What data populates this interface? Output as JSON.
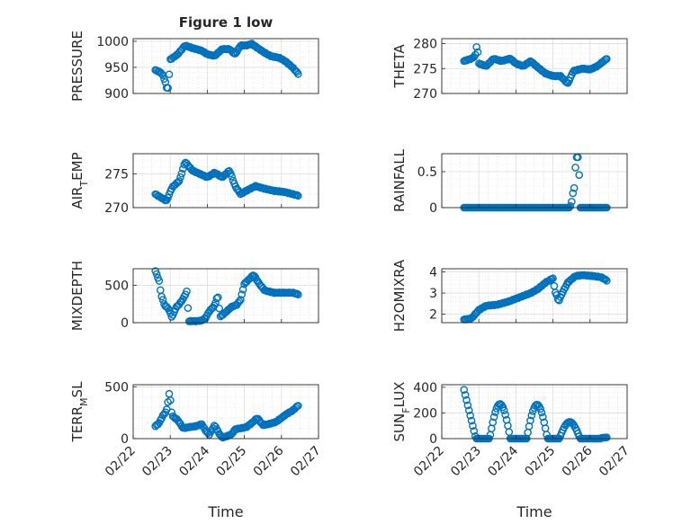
{
  "figure": {
    "title": "Figure 1 low",
    "marker_color": "#0072BD",
    "grid": true,
    "x_label": "Time"
  },
  "chart_data": [
    {
      "type": "scatter",
      "title": "Figure 1 low",
      "ylabel": "PRESSURE",
      "ylim": [
        900,
        1005
      ],
      "yticks": [
        "900",
        "950",
        "1000"
      ],
      "xlim": [
        "02/22",
        "02/27"
      ],
      "x_tick_labels": [
        "02/22",
        "02/23",
        "02/24",
        "02/25",
        "02/26",
        "02/27"
      ],
      "shape": "pressure"
    },
    {
      "type": "scatter",
      "ylabel": "THETA",
      "ylim": [
        270,
        281
      ],
      "yticks": [
        "270",
        "275",
        "280"
      ],
      "xlim": [
        "02/22",
        "02/27"
      ],
      "x_tick_labels": [
        "02/22",
        "02/23",
        "02/24",
        "02/25",
        "02/26",
        "02/27"
      ],
      "shape": "theta"
    },
    {
      "type": "scatter",
      "ylabel": "AIR_TEMP",
      "ylabel_main": "AIR",
      "ylabel_sub": "T",
      "ylabel_rest": "EMP",
      "ylim": [
        270,
        278
      ],
      "yticks": [
        "270",
        "275"
      ],
      "xlim": [
        "02/22",
        "02/27"
      ],
      "x_tick_labels": [
        "02/22",
        "02/23",
        "02/24",
        "02/25",
        "02/26",
        "02/27"
      ],
      "shape": "airtemp"
    },
    {
      "type": "scatter",
      "ylabel": "RAINFALL",
      "ylim": [
        0,
        0.75
      ],
      "yticks": [
        "0",
        "0.5"
      ],
      "xlim": [
        "02/22",
        "02/27"
      ],
      "x_tick_labels": [
        "02/22",
        "02/23",
        "02/24",
        "02/25",
        "02/26",
        "02/27"
      ],
      "shape": "rain"
    },
    {
      "type": "scatter",
      "ylabel": "MIXDEPTH",
      "ylim": [
        0,
        720
      ],
      "yticks": [
        "0",
        "500"
      ],
      "xlim": [
        "02/22",
        "02/27"
      ],
      "x_tick_labels": [
        "02/22",
        "02/23",
        "02/24",
        "02/25",
        "02/26",
        "02/27"
      ],
      "shape": "mix"
    },
    {
      "type": "scatter",
      "ylabel": "H2OMIXRA",
      "ylim": [
        1.6,
        4.15
      ],
      "yticks": [
        "2",
        "3",
        "4"
      ],
      "xlim": [
        "02/22",
        "02/27"
      ],
      "x_tick_labels": [
        "02/22",
        "02/23",
        "02/24",
        "02/25",
        "02/26",
        "02/27"
      ],
      "shape": "h2o"
    },
    {
      "type": "scatter",
      "ylabel": "TERR_MSL",
      "ylabel_main": "TERR",
      "ylabel_sub": "M",
      "ylabel_rest": "SL",
      "ylim": [
        0,
        520
      ],
      "yticks": [
        "0",
        "500"
      ],
      "xlim": [
        "02/22",
        "02/27"
      ],
      "x_tick_labels": [
        "02/22",
        "02/23",
        "02/24",
        "02/25",
        "02/26",
        "02/27"
      ],
      "xlabel": "Time",
      "shape": "terr"
    },
    {
      "type": "scatter",
      "ylabel": "SUN_FLUX",
      "ylabel_main": "SUN",
      "ylabel_sub": "F",
      "ylabel_rest": "LUX",
      "ylim": [
        0,
        420
      ],
      "yticks": [
        "0",
        "200",
        "400"
      ],
      "xlim": [
        "02/22",
        "02/27"
      ],
      "x_tick_labels": [
        "02/22",
        "02/23",
        "02/24",
        "02/25",
        "02/26",
        "02/27"
      ],
      "xlabel": "Time",
      "shape": "sun"
    }
  ]
}
